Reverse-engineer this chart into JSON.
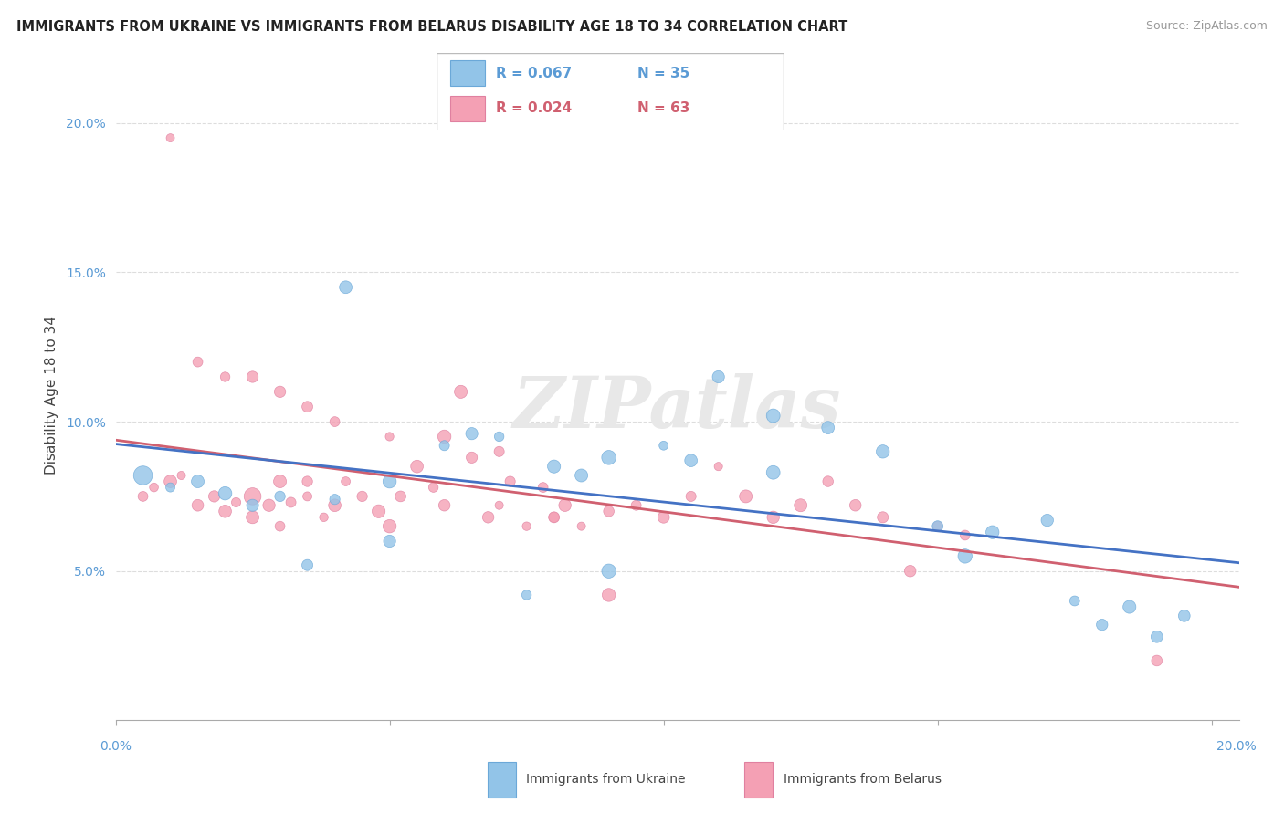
{
  "title": "IMMIGRANTS FROM UKRAINE VS IMMIGRANTS FROM BELARUS DISABILITY AGE 18 TO 34 CORRELATION CHART",
  "source": "Source: ZipAtlas.com",
  "ylabel": "Disability Age 18 to 34",
  "y_ticks": [
    0.05,
    0.1,
    0.15,
    0.2
  ],
  "y_tick_labels": [
    "5.0%",
    "10.0%",
    "15.0%",
    "20.0%"
  ],
  "x_ticks": [
    0.0,
    0.05,
    0.1,
    0.15,
    0.2
  ],
  "x_min": 0.0,
  "x_max": 0.205,
  "y_min": 0.0,
  "y_max": 0.218,
  "legend_r_ukraine": "R = 0.067",
  "legend_n_ukraine": "N = 35",
  "legend_r_belarus": "R = 0.024",
  "legend_n_belarus": "N = 63",
  "legend_label_ukraine": "Immigrants from Ukraine",
  "legend_label_belarus": "Immigrants from Belarus",
  "ukraine_color": "#92C4E8",
  "belarus_color": "#F4A0B4",
  "ukraine_edge": "#6BA8D8",
  "belarus_edge": "#E080A0",
  "ukraine_line_color": "#4472C4",
  "belarus_line_color": "#D06070",
  "watermark": "ZIPatlas",
  "ukraine_x": [
    0.005,
    0.01,
    0.015,
    0.02,
    0.025,
    0.03,
    0.04,
    0.05,
    0.06,
    0.07,
    0.08,
    0.09,
    0.1,
    0.11,
    0.12,
    0.13,
    0.14,
    0.15,
    0.155,
    0.16,
    0.17,
    0.175,
    0.18,
    0.185,
    0.19,
    0.195,
    0.042,
    0.065,
    0.085,
    0.105,
    0.12,
    0.05,
    0.09,
    0.035,
    0.075
  ],
  "ukraine_y": [
    0.082,
    0.078,
    0.08,
    0.076,
    0.072,
    0.075,
    0.074,
    0.08,
    0.092,
    0.095,
    0.085,
    0.088,
    0.092,
    0.115,
    0.102,
    0.098,
    0.09,
    0.065,
    0.055,
    0.063,
    0.067,
    0.04,
    0.032,
    0.038,
    0.028,
    0.035,
    0.145,
    0.096,
    0.082,
    0.087,
    0.083,
    0.06,
    0.05,
    0.052,
    0.042
  ],
  "belarus_x": [
    0.005,
    0.007,
    0.01,
    0.012,
    0.015,
    0.018,
    0.02,
    0.022,
    0.025,
    0.025,
    0.028,
    0.03,
    0.03,
    0.032,
    0.035,
    0.035,
    0.038,
    0.04,
    0.042,
    0.045,
    0.048,
    0.05,
    0.052,
    0.055,
    0.058,
    0.06,
    0.063,
    0.065,
    0.068,
    0.07,
    0.072,
    0.075,
    0.078,
    0.08,
    0.082,
    0.085,
    0.09,
    0.095,
    0.1,
    0.105,
    0.11,
    0.115,
    0.12,
    0.125,
    0.13,
    0.135,
    0.14,
    0.145,
    0.15,
    0.155,
    0.01,
    0.015,
    0.02,
    0.025,
    0.03,
    0.035,
    0.04,
    0.05,
    0.06,
    0.07,
    0.08,
    0.09,
    0.19
  ],
  "belarus_y": [
    0.075,
    0.078,
    0.08,
    0.082,
    0.072,
    0.075,
    0.07,
    0.073,
    0.068,
    0.075,
    0.072,
    0.065,
    0.08,
    0.073,
    0.075,
    0.08,
    0.068,
    0.072,
    0.08,
    0.075,
    0.07,
    0.065,
    0.075,
    0.085,
    0.078,
    0.072,
    0.11,
    0.088,
    0.068,
    0.072,
    0.08,
    0.065,
    0.078,
    0.068,
    0.072,
    0.065,
    0.07,
    0.072,
    0.068,
    0.075,
    0.085,
    0.075,
    0.068,
    0.072,
    0.08,
    0.072,
    0.068,
    0.05,
    0.065,
    0.062,
    0.195,
    0.12,
    0.115,
    0.115,
    0.11,
    0.105,
    0.1,
    0.095,
    0.095,
    0.09,
    0.068,
    0.042,
    0.02
  ]
}
